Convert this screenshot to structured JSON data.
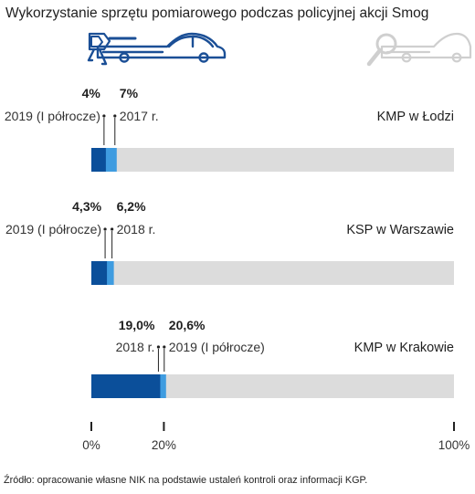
{
  "title": "Wykorzystanie sprzętu pomiarowego podczas policyjnej akcji Smog",
  "source": "Źródło: opracowanie własne NIK na podstawie ustaleń kontroli oraz informacji KGP.",
  "icons": {
    "left": "car-with-speed-camera-icon",
    "right": "car-with-magnifier-icon"
  },
  "colors": {
    "dark": "#0b4f9a",
    "light": "#3f9ce0",
    "track": "#dcdcdc",
    "icon_left": "#1b4f96",
    "icon_right": "#cfcfcf"
  },
  "chart_data": {
    "type": "bar",
    "unit": "%",
    "xlim": [
      0,
      100
    ],
    "x_ticks": [
      {
        "value": 0,
        "label": "0%"
      },
      {
        "value": 20,
        "label": "20%"
      },
      {
        "value": 100,
        "label": "100%"
      }
    ],
    "groups": [
      {
        "name": "KMP w Łodzi",
        "bars": [
          {
            "value": 4,
            "value_label": "4%",
            "period": "2019 (I półrocze)",
            "shade": "dark"
          },
          {
            "value": 7,
            "value_label": "7%",
            "period": "2017 r.",
            "shade": "light"
          }
        ]
      },
      {
        "name": "KSP w Warszawie",
        "bars": [
          {
            "value": 4.3,
            "value_label": "4,3%",
            "period": "2019 (I półrocze)",
            "shade": "dark"
          },
          {
            "value": 6.2,
            "value_label": "6,2%",
            "period": "2018 r.",
            "shade": "light"
          }
        ]
      },
      {
        "name": "KMP w Krakowie",
        "bars": [
          {
            "value": 19.0,
            "value_label": "19,0%",
            "period": "2018 r.",
            "shade": "dark"
          },
          {
            "value": 20.6,
            "value_label": "20,6%",
            "period": "2019 (I półrocze)",
            "shade": "light"
          }
        ]
      }
    ]
  }
}
